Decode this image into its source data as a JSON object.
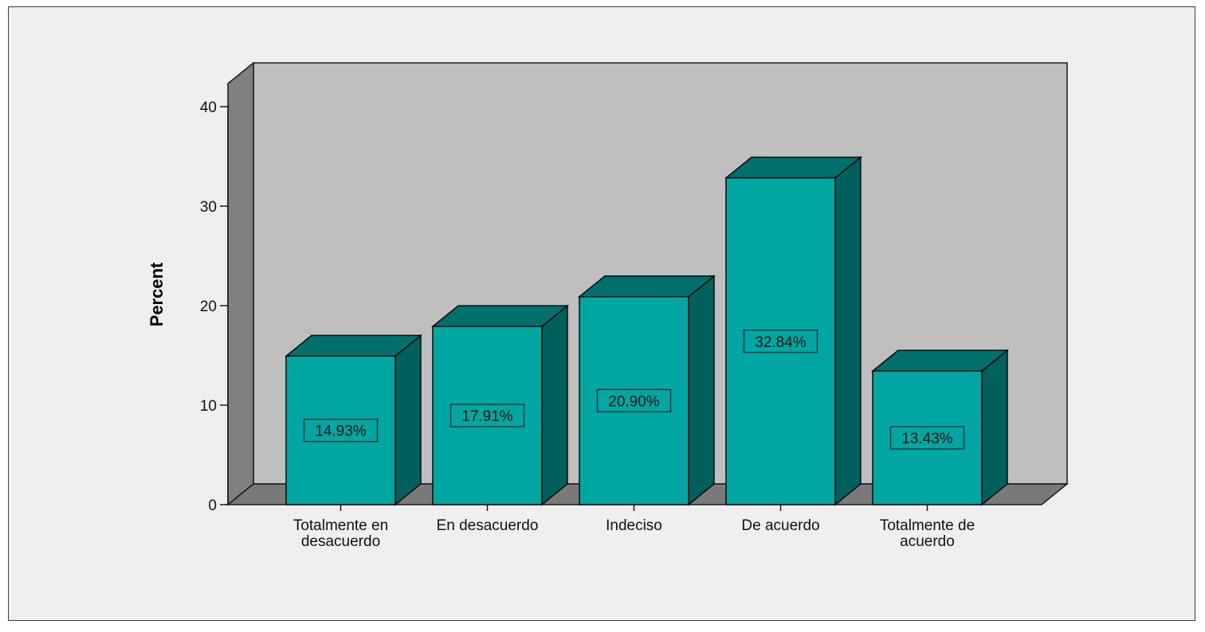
{
  "chart_data": {
    "type": "bar",
    "categories": [
      "Totalmente en desacuerdo",
      "En desacuerdo",
      "Indeciso",
      "De acuerdo",
      "Totalmente de acuerdo"
    ],
    "category_label_lines": [
      [
        "Totalmente en",
        "desacuerdo"
      ],
      [
        "En desacuerdo"
      ],
      [
        "Indeciso"
      ],
      [
        "De acuerdo"
      ],
      [
        "Totalmente de",
        "acuerdo"
      ]
    ],
    "values": [
      14.93,
      17.91,
      20.9,
      32.84,
      13.43
    ],
    "data_labels": [
      "14.93%",
      "17.91%",
      "20.90%",
      "32.84%",
      "13.43%"
    ],
    "ylabel": "Percent",
    "xlabel": "",
    "ylim": [
      0,
      40
    ],
    "yticks": [
      0,
      10,
      20,
      30,
      40
    ],
    "grid": false,
    "style": "3d",
    "colors": {
      "bar_front": "#00a6a2",
      "bar_top": "#00706c",
      "bar_side": "#00605c",
      "back_wall": "#bfbfbf",
      "side_wall": "#808080",
      "floor": "#7a7a7a",
      "frame_bg": "#efefef"
    }
  }
}
